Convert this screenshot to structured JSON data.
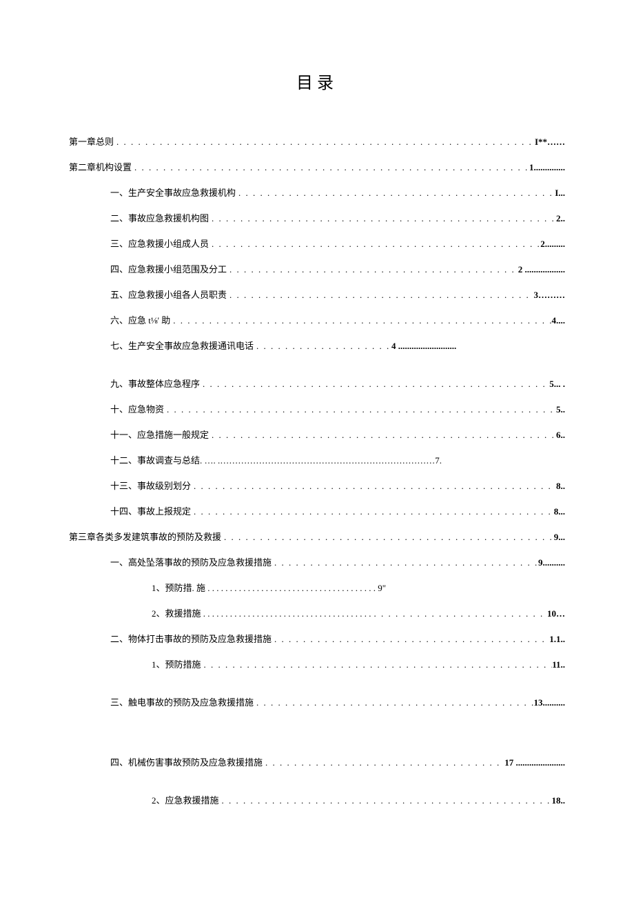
{
  "title": "目录",
  "colors": {
    "background": "#ffffff",
    "text": "#000000"
  },
  "toc": [
    {
      "level": 0,
      "label": "第一章总则",
      "page": "I**……",
      "dots": true
    },
    {
      "level": 0,
      "label": "第二章机构设置",
      "page": "1..............",
      "dots": true
    },
    {
      "level": 1,
      "label": "一、生产安全事故应急救援机构",
      "page": "I...",
      "dots": true
    },
    {
      "level": 1,
      "label": "二、事故应急救援机构图",
      "page": "2..",
      "dots": true
    },
    {
      "level": 1,
      "label": "三、应急救援小组成人员",
      "page": "2.........",
      "dots": true
    },
    {
      "level": 1,
      "label": "四、应急救援小组范围及分工",
      "page": "2 ..................",
      "dots": true
    },
    {
      "level": 1,
      "label": "五、应急救援小组各人员职责",
      "page": "3………",
      "dots": true
    },
    {
      "level": 1,
      "label": "六、应急 t⅛' 助",
      "page": "4....",
      "dots": true
    },
    {
      "level": 1,
      "label": "七、生产安全事故应急救援通讯电话",
      "page": "4 ..........................",
      "dots": true,
      "short": true
    },
    {
      "gap": true
    },
    {
      "level": 1,
      "label": "九、事故整体应急程序",
      "page": "5...     .",
      "dots": true
    },
    {
      "level": 1,
      "label": "十、应急物资",
      "page": "5..",
      "dots": true
    },
    {
      "level": 1,
      "label": "十一、应急措施一般规定",
      "page": "6..",
      "dots": true
    },
    {
      "level": 1,
      "label": "十二、事故调查与总结. ….  .………………………………………………………………7.",
      "page": "",
      "dots": false
    },
    {
      "level": 1,
      "label": "十三、事故级别划分",
      "page": "8..",
      "dots": true
    },
    {
      "level": 1,
      "label": "十四、事故上报规定",
      "page": "8...",
      "dots": true
    },
    {
      "level": 0,
      "label": "第三章各类多发建筑事故的预防及救援",
      "page": "9...",
      "dots": true
    },
    {
      "level": 1,
      "label": "一、高处坠落事故的预防及应急救援措施",
      "page": "9..........",
      "dots": true
    },
    {
      "level": 2,
      "label": "1、预防措. 施 . . . . . . . . . . . . . . .   . . . . . . . . . . . . . . . . . . . . . . .       9\"",
      "page": "",
      "dots": false
    },
    {
      "level": 2,
      "label": "2、救援措施  . . . . . . . . . . . . . . . . . . . . . . . . . . . .   . . . . . . . . . .",
      "page": "10…",
      "dots": true
    },
    {
      "level": 1,
      "label": "二、物体打击事故的预防及应急救援措施",
      "page": "1.1..",
      "dots": true
    },
    {
      "level": 2,
      "label": "1、预防措施",
      "page": "11..",
      "dots": true
    },
    {
      "gap": true
    },
    {
      "level": 1,
      "label": "三、触电事故的预防及应急救援措施",
      "page": "13..........",
      "dots": true
    },
    {
      "gaplarge": true
    },
    {
      "level": 1,
      "label": "四、机械伤害事故预防及应急救援措施",
      "page": "17 ......................",
      "dots": true
    },
    {
      "gap": true
    },
    {
      "level": 2,
      "label": "2、应急救援措施",
      "page": "18..",
      "dots": true
    }
  ]
}
